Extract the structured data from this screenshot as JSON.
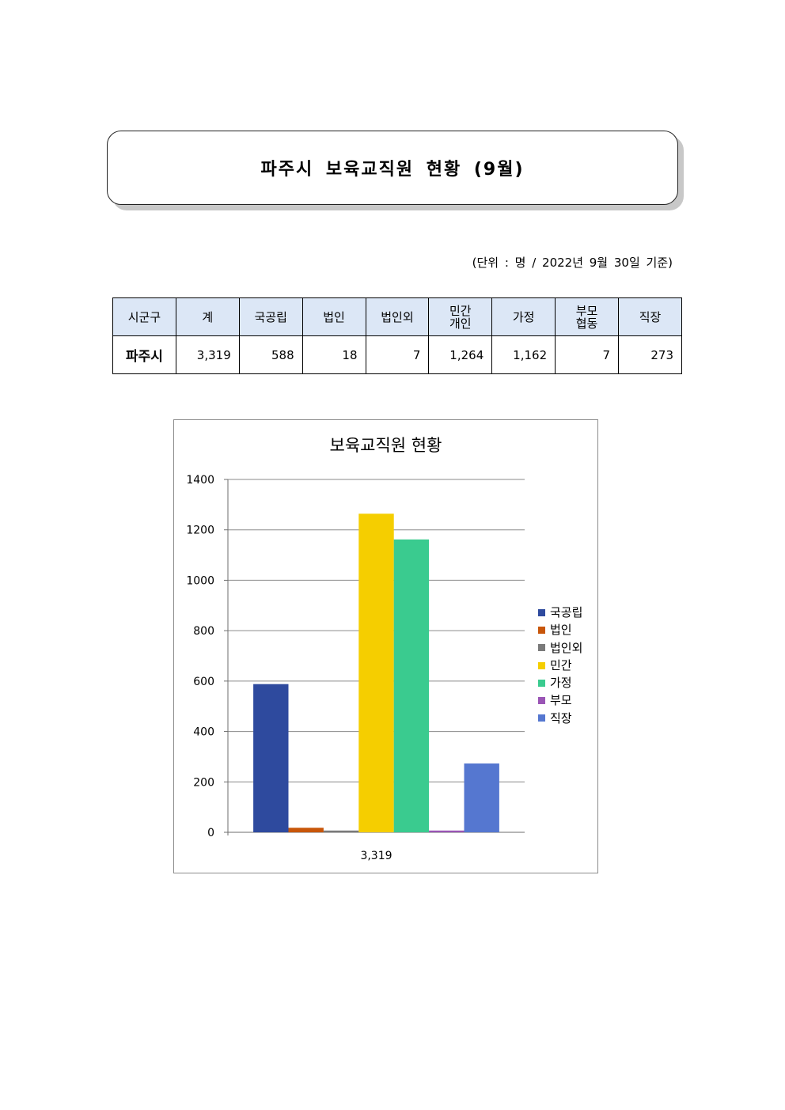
{
  "document": {
    "title": "파주시 보육교직원 현황 (9월)",
    "unit_note": "(단위 : 명 / 2022년 9월 30일 기준)"
  },
  "table": {
    "headers": [
      "시군구",
      "계",
      "국공립",
      "법인",
      "법인외",
      "민간\n개인",
      "가정",
      "부모\n협동",
      "직장"
    ],
    "rows": [
      [
        "파주시",
        "3,319",
        "588",
        "18",
        "7",
        "1,264",
        "1,162",
        "7",
        "273"
      ]
    ]
  },
  "chart_data": {
    "type": "bar",
    "title": "보육교직원 현황",
    "categories": [
      "3,319"
    ],
    "series": [
      {
        "name": "국공립",
        "values": [
          588
        ],
        "color": "#2E4A9E"
      },
      {
        "name": "법인",
        "values": [
          18
        ],
        "color": "#C8560A"
      },
      {
        "name": "법인외",
        "values": [
          7
        ],
        "color": "#7A7A7A"
      },
      {
        "name": "민간",
        "values": [
          1264
        ],
        "color": "#F5CE00"
      },
      {
        "name": "가정",
        "values": [
          1162
        ],
        "color": "#3ACB8F"
      },
      {
        "name": "부모",
        "values": [
          7
        ],
        "color": "#9A55B5"
      },
      {
        "name": "직장",
        "values": [
          273
        ],
        "color": "#5577D0"
      }
    ],
    "ylim": [
      0,
      1400
    ],
    "yticks": [
      "0",
      "200",
      "400",
      "600",
      "800",
      "1000",
      "1200",
      "1400"
    ],
    "grid": true,
    "legend_position": "right"
  }
}
